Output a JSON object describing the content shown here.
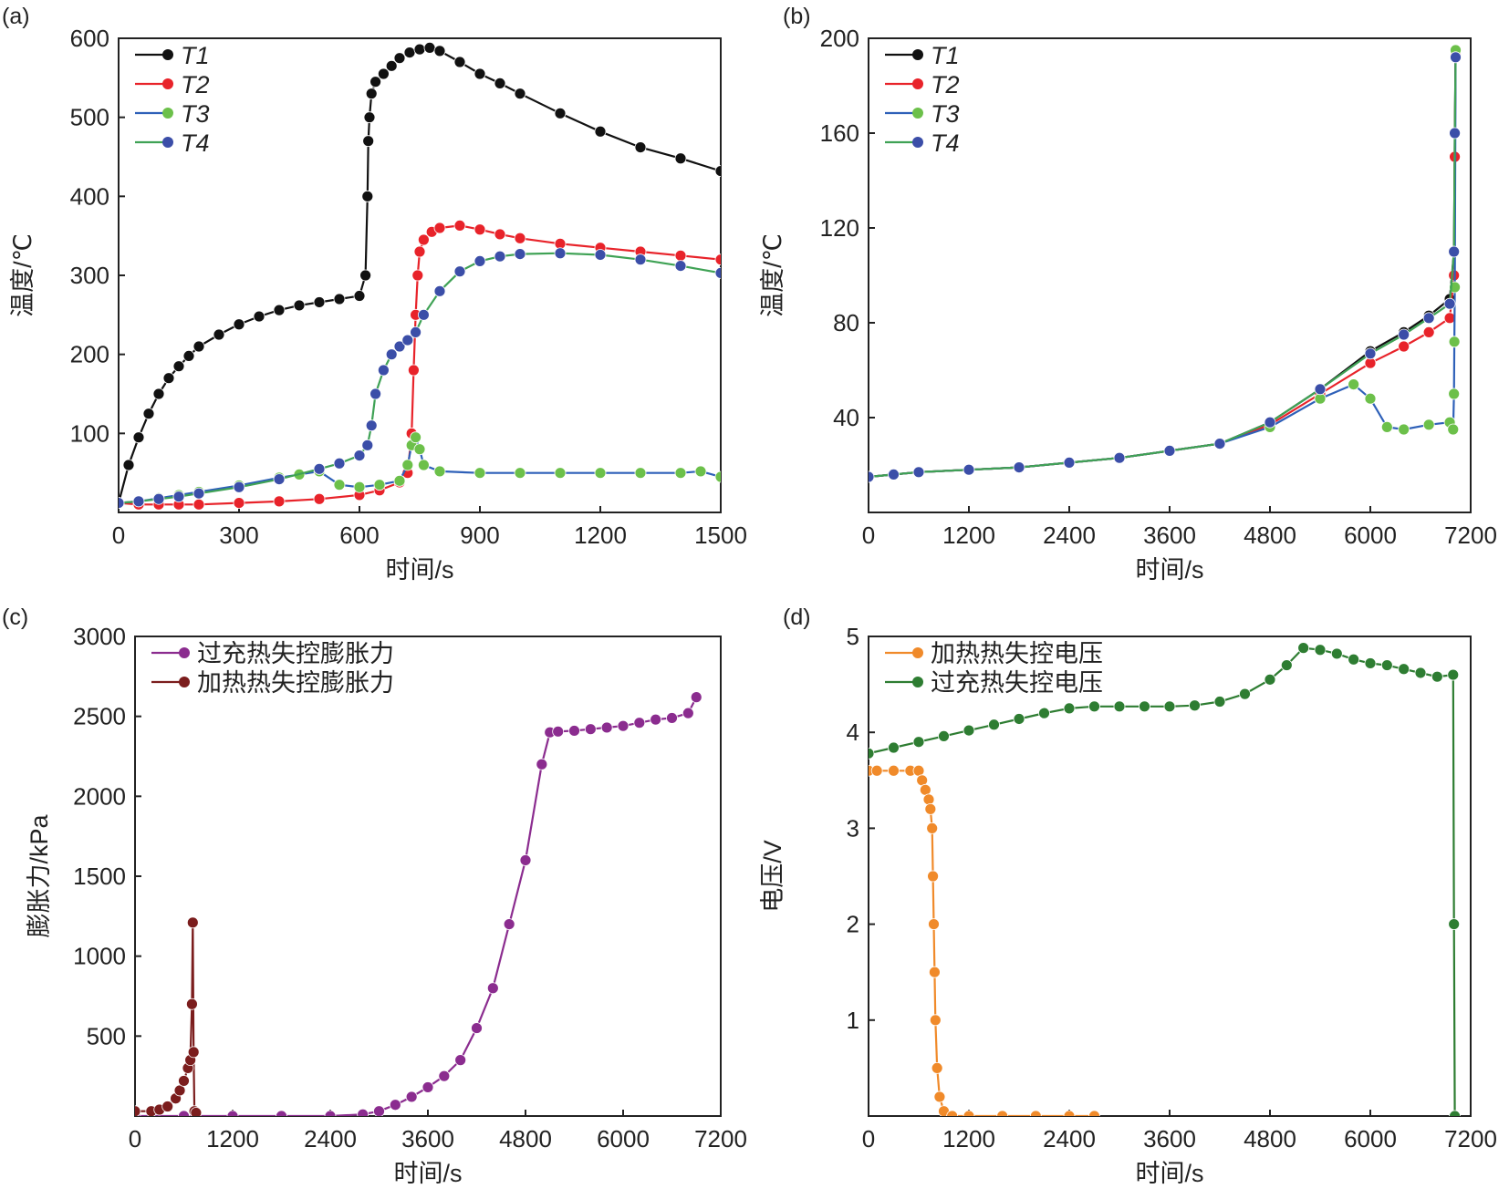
{
  "chart_data": [
    {
      "panel": "(a)",
      "type": "line",
      "xlabel": "时间/s",
      "ylabel": "温度/℃",
      "xlim": [
        0,
        1500
      ],
      "ylim": [
        0,
        600
      ],
      "xticks": [
        0,
        300,
        600,
        900,
        1200,
        1500
      ],
      "yticks": [
        100,
        200,
        300,
        400,
        500,
        600
      ],
      "legend_position": "top-left",
      "series": [
        {
          "name": "T1",
          "line_color": "#111111",
          "marker_color": "#111111",
          "x": [
            0,
            25,
            50,
            75,
            100,
            125,
            150,
            175,
            200,
            250,
            300,
            350,
            400,
            450,
            500,
            550,
            600,
            615,
            620,
            622,
            625,
            630,
            640,
            660,
            680,
            700,
            725,
            750,
            775,
            800,
            850,
            900,
            950,
            1000,
            1100,
            1200,
            1300,
            1400,
            1500
          ],
          "y": [
            12,
            60,
            95,
            125,
            150,
            170,
            185,
            198,
            210,
            225,
            238,
            248,
            256,
            262,
            266,
            270,
            274,
            300,
            400,
            470,
            500,
            530,
            545,
            555,
            565,
            575,
            582,
            586,
            588,
            584,
            570,
            555,
            543,
            530,
            505,
            482,
            462,
            448,
            432
          ]
        },
        {
          "name": "T2",
          "line_color": "#e8232a",
          "marker_color": "#e8232a",
          "x": [
            0,
            50,
            100,
            150,
            200,
            300,
            400,
            500,
            600,
            650,
            700,
            720,
            730,
            735,
            740,
            745,
            750,
            760,
            780,
            800,
            850,
            900,
            950,
            1000,
            1100,
            1200,
            1300,
            1400,
            1500
          ],
          "y": [
            12,
            10,
            10,
            10,
            10,
            12,
            14,
            17,
            22,
            28,
            38,
            50,
            100,
            180,
            250,
            300,
            330,
            345,
            355,
            360,
            363,
            358,
            352,
            347,
            340,
            335,
            330,
            325,
            320
          ]
        },
        {
          "name": "T3",
          "line_color": "#2e60b8",
          "marker_color": "#6cc04a",
          "x": [
            0,
            50,
            100,
            150,
            200,
            300,
            400,
            450,
            500,
            550,
            600,
            650,
            700,
            720,
            730,
            740,
            750,
            760,
            800,
            900,
            1000,
            1100,
            1200,
            1300,
            1400,
            1450,
            1500
          ],
          "y": [
            12,
            14,
            18,
            22,
            26,
            34,
            44,
            48,
            52,
            35,
            32,
            35,
            40,
            60,
            85,
            95,
            80,
            60,
            52,
            50,
            50,
            50,
            50,
            50,
            50,
            52,
            45
          ]
        },
        {
          "name": "T4",
          "line_color": "#3fa255",
          "marker_color": "#3b4ea8",
          "x": [
            0,
            50,
            100,
            150,
            200,
            300,
            400,
            500,
            550,
            600,
            620,
            630,
            640,
            660,
            680,
            700,
            720,
            740,
            760,
            800,
            850,
            900,
            950,
            1000,
            1100,
            1200,
            1300,
            1400,
            1500
          ],
          "y": [
            12,
            14,
            17,
            20,
            24,
            32,
            42,
            55,
            62,
            72,
            85,
            110,
            150,
            180,
            200,
            210,
            218,
            228,
            250,
            280,
            305,
            318,
            324,
            327,
            328,
            326,
            320,
            312,
            303
          ]
        }
      ]
    },
    {
      "panel": "(b)",
      "type": "line",
      "xlabel": "时间/s",
      "ylabel": "温度/℃",
      "xlim": [
        0,
        7200
      ],
      "ylim": [
        0,
        200
      ],
      "xticks": [
        0,
        1200,
        2400,
        3600,
        4800,
        6000,
        7200
      ],
      "yticks": [
        40,
        80,
        120,
        160,
        200
      ],
      "legend_position": "top-left",
      "series": [
        {
          "name": "T1",
          "line_color": "#111111",
          "marker_color": "#111111",
          "x": [
            0,
            300,
            600,
            1200,
            1800,
            2400,
            3000,
            3600,
            4200,
            4800,
            5400,
            6000,
            6400,
            6700,
            6950,
            7000,
            7010,
            7020
          ],
          "y": [
            15,
            16,
            17,
            18,
            19,
            21,
            23,
            26,
            29,
            38,
            52,
            68,
            76,
            83,
            90,
            110,
            160,
            195
          ]
        },
        {
          "name": "T2",
          "line_color": "#e8232a",
          "marker_color": "#e8232a",
          "x": [
            0,
            300,
            600,
            1200,
            1800,
            2400,
            3000,
            3600,
            4200,
            4800,
            5400,
            6000,
            6400,
            6700,
            6950,
            7000,
            7010,
            7020
          ],
          "y": [
            15,
            16,
            17,
            18,
            19,
            21,
            23,
            26,
            29,
            37,
            50,
            63,
            70,
            76,
            82,
            100,
            150,
            193
          ]
        },
        {
          "name": "T3",
          "line_color": "#2e60b8",
          "marker_color": "#6cc04a",
          "x": [
            0,
            300,
            600,
            1200,
            1800,
            2400,
            3000,
            3600,
            4200,
            4800,
            5400,
            5800,
            6000,
            6200,
            6400,
            6700,
            6950,
            6990,
            7000,
            7005,
            7010,
            7020
          ],
          "y": [
            15,
            16,
            17,
            18,
            19,
            21,
            23,
            26,
            29,
            36,
            48,
            54,
            48,
            36,
            35,
            37,
            38,
            35,
            50,
            72,
            95,
            195
          ]
        },
        {
          "name": "T4",
          "line_color": "#3fa255",
          "marker_color": "#3b4ea8",
          "x": [
            0,
            300,
            600,
            1200,
            1800,
            2400,
            3000,
            3600,
            4200,
            4800,
            5400,
            6000,
            6400,
            6700,
            6950,
            7000,
            7010,
            7020
          ],
          "y": [
            15,
            16,
            17,
            18,
            19,
            21,
            23,
            26,
            29,
            38,
            52,
            67,
            75,
            82,
            88,
            110,
            160,
            192
          ]
        }
      ]
    },
    {
      "panel": "(c)",
      "type": "line",
      "xlabel": "时间/s",
      "ylabel": "膨胀力/kPa",
      "xlim": [
        0,
        7200
      ],
      "ylim": [
        0,
        3000
      ],
      "xticks": [
        0,
        1200,
        2400,
        3600,
        4800,
        6000,
        7200
      ],
      "yticks": [
        500,
        1000,
        1500,
        2000,
        2500,
        3000
      ],
      "legend_position": "top-left",
      "series": [
        {
          "name": "过充热失控膨胀力",
          "line_color": "#8b2c8f",
          "marker_color": "#8b2c8f",
          "x": [
            0,
            600,
            1200,
            1800,
            2400,
            2800,
            3000,
            3200,
            3400,
            3600,
            3800,
            4000,
            4200,
            4400,
            4600,
            4800,
            5000,
            5100,
            5200,
            5400,
            5600,
            5800,
            6000,
            6200,
            6400,
            6600,
            6800,
            6900
          ],
          "y": [
            0,
            0,
            0,
            0,
            0,
            10,
            30,
            70,
            120,
            180,
            250,
            350,
            550,
            800,
            1200,
            1600,
            2200,
            2400,
            2405,
            2410,
            2420,
            2430,
            2440,
            2460,
            2480,
            2490,
            2520,
            2620
          ]
        },
        {
          "name": "加热热失控膨胀力",
          "line_color": "#7b1d1d",
          "marker_color": "#7b1d1d",
          "x": [
            0,
            200,
            300,
            400,
            500,
            550,
            600,
            650,
            680,
            700,
            710,
            720,
            730,
            750
          ],
          "y": [
            30,
            30,
            40,
            60,
            110,
            160,
            220,
            300,
            350,
            700,
            1210,
            400,
            30,
            20
          ]
        }
      ]
    },
    {
      "panel": "(d)",
      "type": "line",
      "xlabel": "时间/s",
      "ylabel": "电压/V",
      "xlim": [
        0,
        7200
      ],
      "ylim": [
        0,
        5
      ],
      "xticks": [
        0,
        1200,
        2400,
        3600,
        4800,
        6000,
        7200
      ],
      "yticks": [
        1,
        2,
        3,
        4,
        5
      ],
      "legend_position": "top-left",
      "series": [
        {
          "name": "加热热失控电压",
          "line_color": "#f08a2a",
          "marker_color": "#f08a2a",
          "x": [
            0,
            100,
            300,
            500,
            600,
            640,
            680,
            720,
            740,
            760,
            770,
            780,
            790,
            800,
            820,
            850,
            900,
            1000,
            1200,
            1600,
            2000,
            2400,
            2700
          ],
          "y": [
            3.6,
            3.6,
            3.6,
            3.6,
            3.6,
            3.5,
            3.4,
            3.3,
            3.2,
            3.0,
            2.5,
            2.0,
            1.5,
            1.0,
            0.5,
            0.2,
            0.05,
            0,
            0,
            0,
            0,
            0,
            0
          ]
        },
        {
          "name": "过充热失控电压",
          "line_color": "#2e7d32",
          "marker_color": "#2e7d32",
          "x": [
            0,
            300,
            600,
            900,
            1200,
            1500,
            1800,
            2100,
            2400,
            2700,
            3000,
            3300,
            3600,
            3900,
            4200,
            4500,
            4800,
            5000,
            5200,
            5400,
            5600,
            5800,
            6000,
            6200,
            6400,
            6600,
            6800,
            6990,
            7000,
            7010
          ],
          "y": [
            3.78,
            3.84,
            3.9,
            3.96,
            4.02,
            4.08,
            4.14,
            4.2,
            4.25,
            4.27,
            4.27,
            4.27,
            4.27,
            4.28,
            4.32,
            4.4,
            4.55,
            4.7,
            4.88,
            4.86,
            4.82,
            4.76,
            4.72,
            4.7,
            4.66,
            4.62,
            4.58,
            4.6,
            2.0,
            0
          ]
        }
      ]
    }
  ]
}
